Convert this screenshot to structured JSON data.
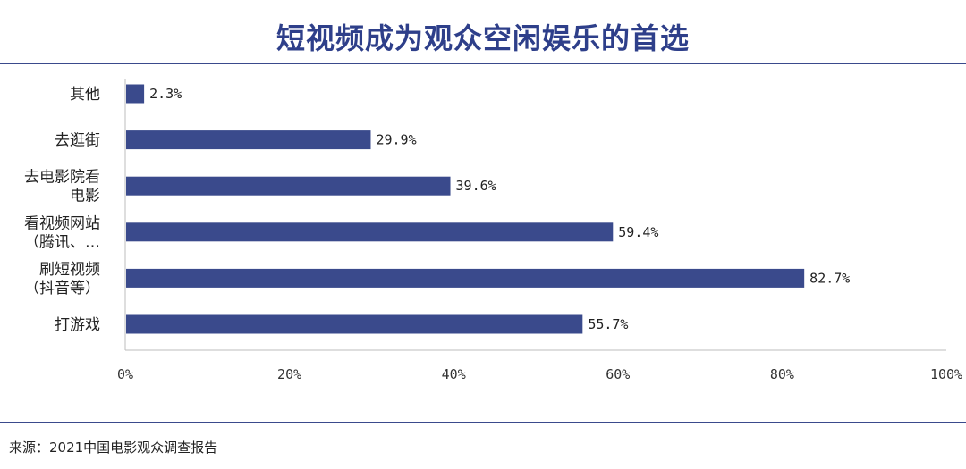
{
  "title": "短视频成为观众空闲娱乐的首选",
  "source": "来源：2021中国电影观众调查报告",
  "colors": {
    "bar": "#3a4a8c",
    "rule": "#3a4a8c",
    "title": "#2e3f8a",
    "axis": "#bdbdbd"
  },
  "chart_data": {
    "type": "bar",
    "orientation": "horizontal",
    "categories": [
      [
        "其他"
      ],
      [
        "去逛街"
      ],
      [
        "去电影院看",
        "电影"
      ],
      [
        "看视频网站",
        "（腾讯、…"
      ],
      [
        "刷短视频",
        "（抖音等）"
      ],
      [
        "打游戏"
      ]
    ],
    "values": [
      2.3,
      29.9,
      39.6,
      59.4,
      82.7,
      55.7
    ],
    "value_labels": [
      "2.3%",
      "29.9%",
      "39.6%",
      "59.4%",
      "82.7%",
      "55.7%"
    ],
    "xlim": [
      0,
      100
    ],
    "xticks": [
      "0%",
      "20%",
      "40%",
      "60%",
      "80%",
      "100%"
    ],
    "grid": false
  }
}
